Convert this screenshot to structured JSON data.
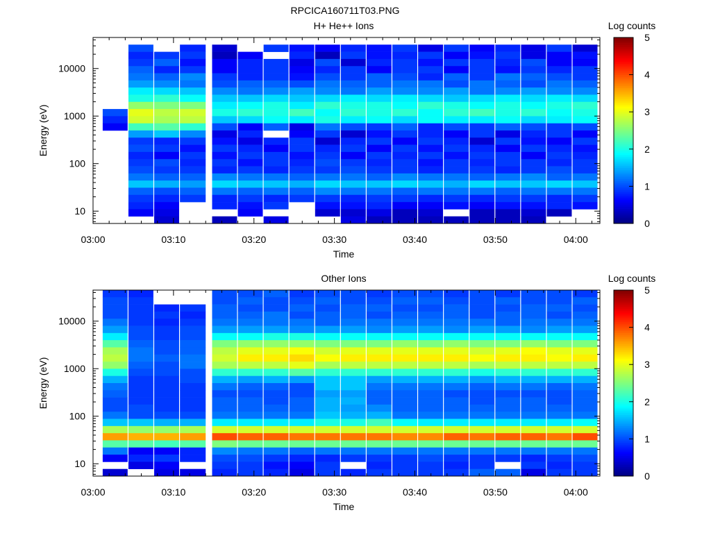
{
  "figure_title": "RPCICA160711T03.PNG",
  "colors": {
    "background": "#ffffff",
    "axis": "#000000",
    "empty_bin": "#ffffff",
    "colormap": [
      "#00007f",
      "#0000ff",
      "#007fff",
      "#00ffff",
      "#7fff7f",
      "#ffff00",
      "#ff7f00",
      "#ff0000",
      "#7f0000"
    ]
  },
  "chart_data": [
    {
      "type": "heatmap",
      "title": "H+ He++ Ions",
      "xlabel": "Time",
      "ylabel": "Energy (eV)",
      "x_ticks": [
        "03:00",
        "03:10",
        "03:20",
        "03:30",
        "03:40",
        "03:50",
        "04:00"
      ],
      "y_ticks": [
        "10",
        "100",
        "1000",
        "10000"
      ],
      "y_scale": "log",
      "ylim": [
        5.5,
        45000
      ],
      "xlim_minutes": [
        0,
        63
      ],
      "grid": false,
      "colorbar": {
        "label": "Log counts",
        "ticks": [
          "0",
          "1",
          "2",
          "3",
          "4",
          "5"
        ],
        "range": [
          0,
          5
        ]
      },
      "x_minutes_start": [
        1.2,
        4.4,
        7.6,
        10.8,
        14.8,
        18.0,
        21.2,
        24.4,
        27.6,
        30.8,
        34.0,
        37.2,
        40.4,
        43.6,
        46.8,
        50.0,
        53.2,
        56.4,
        59.6
      ],
      "x_minutes_end": [
        4.3,
        7.5,
        10.7,
        14.0,
        17.9,
        21.1,
        24.3,
        27.5,
        30.7,
        33.9,
        37.1,
        40.3,
        43.5,
        46.7,
        49.9,
        53.1,
        56.3,
        59.5,
        62.7
      ],
      "levels": [
        [
          0,
          0,
          0,
          0,
          0,
          0,
          0,
          0,
          0,
          0,
          0,
          0,
          0,
          0,
          0,
          0,
          0,
          0,
          0
        ],
        [
          0,
          1,
          0,
          0.8,
          0.4,
          0,
          0.9,
          0.7,
          0.6,
          0.8,
          0.7,
          0.9,
          0.5,
          0.9,
          0.6,
          0.8,
          0.5,
          0.9,
          0.4
        ],
        [
          0,
          0.8,
          0.9,
          0.9,
          0.3,
          0.6,
          0,
          0.8,
          0.3,
          0.9,
          0.7,
          0.8,
          0.9,
          0.6,
          0.7,
          0.9,
          0.5,
          0.6,
          0.7
        ],
        [
          0,
          0.9,
          1.1,
          0.7,
          0.6,
          0.8,
          0.9,
          0.5,
          1.0,
          0.4,
          0.8,
          0.9,
          0.7,
          0.9,
          0.9,
          0.8,
          1.0,
          0.6,
          0.6
        ],
        [
          0,
          1.1,
          0.8,
          0.9,
          0.6,
          0.8,
          0.9,
          0.6,
          0.8,
          0.9,
          0.6,
          0.9,
          0.9,
          0.6,
          0.9,
          0.7,
          0.9,
          0.8,
          0.9
        ],
        [
          0,
          1.2,
          1.1,
          1.3,
          0.9,
          0.8,
          0.9,
          0.7,
          1.0,
          0.9,
          1.1,
          1.0,
          0.8,
          1.1,
          0.9,
          1.2,
          1.1,
          1.0,
          0.9
        ],
        [
          0,
          1.4,
          1.3,
          1.2,
          1.0,
          1.1,
          1.1,
          1.0,
          1.2,
          1.1,
          1.1,
          1.2,
          1.2,
          1.0,
          1.2,
          1.1,
          1.0,
          1.2,
          1.1
        ],
        [
          0,
          1.8,
          1.7,
          1.6,
          1.3,
          1.2,
          1.3,
          1.4,
          1.3,
          1.2,
          1.4,
          1.3,
          1.3,
          1.4,
          1.2,
          1.3,
          1.4,
          1.3,
          1.3
        ],
        [
          0,
          2.0,
          2.1,
          1.9,
          1.6,
          1.6,
          1.7,
          1.6,
          1.7,
          1.8,
          1.7,
          1.8,
          1.7,
          1.6,
          1.7,
          1.8,
          1.7,
          1.8,
          1.7
        ],
        [
          0,
          2.6,
          2.5,
          2.5,
          1.8,
          1.9,
          2.0,
          1.8,
          2.1,
          2.0,
          2.0,
          1.9,
          2.1,
          2.0,
          1.9,
          2.0,
          1.9,
          2.0,
          2.1
        ],
        [
          1.0,
          3.0,
          2.8,
          2.9,
          2.0,
          2.1,
          2.0,
          2.2,
          1.9,
          2.1,
          2.0,
          2.1,
          1.9,
          2.1,
          2.2,
          2.0,
          2.1,
          1.9,
          2.0
        ],
        [
          0.8,
          2.9,
          2.7,
          2.8,
          1.6,
          1.7,
          1.9,
          1.8,
          2.0,
          1.8,
          1.9,
          1.7,
          1.9,
          1.8,
          1.8,
          1.9,
          1.7,
          1.8,
          1.9
        ],
        [
          0.6,
          2.2,
          2.3,
          2.1,
          1.0,
          0.6,
          1.1,
          0.5,
          1.2,
          1.0,
          0.9,
          1.1,
          0.8,
          1.0,
          0.9,
          1.1,
          1.0,
          0.9,
          1.0
        ],
        [
          0,
          1.4,
          1.6,
          1.3,
          0.5,
          0.8,
          0,
          0.6,
          0.9,
          0.4,
          0.7,
          0.9,
          0.8,
          0.6,
          0.9,
          0.5,
          0.8,
          0.9,
          0.6
        ],
        [
          0,
          0.9,
          0.8,
          0.9,
          0.7,
          0.5,
          0.8,
          0.9,
          0.4,
          0.8,
          0.9,
          0.6,
          0.9,
          0.8,
          0.4,
          0.9,
          0.7,
          0.6,
          0.9
        ],
        [
          0,
          1.0,
          0.9,
          0.7,
          0.9,
          0.8,
          0.6,
          0.9,
          0.8,
          0.9,
          0.6,
          0.9,
          0.7,
          0.9,
          0.8,
          0.6,
          0.9,
          0.8,
          0.7
        ],
        [
          0,
          0.8,
          0.6,
          0.9,
          0.7,
          0.9,
          0.9,
          0.7,
          0.9,
          0.6,
          0.9,
          0.8,
          0.9,
          0.7,
          0.9,
          0.9,
          0.6,
          0.9,
          0.8
        ],
        [
          0,
          0.9,
          1.0,
          0.8,
          0.9,
          0.7,
          0.9,
          0.8,
          1.0,
          0.9,
          0.8,
          0.9,
          0.7,
          0.9,
          0.8,
          0.9,
          0.9,
          0.8,
          0.9
        ],
        [
          0,
          1.0,
          0.9,
          0.9,
          0.8,
          0.9,
          0.8,
          0.9,
          0.9,
          1.0,
          0.9,
          0.9,
          0.8,
          0.9,
          0.9,
          0.8,
          0.9,
          1.0,
          0.9
        ],
        [
          0,
          1.2,
          1.1,
          1.1,
          1.3,
          1.2,
          1.2,
          1.1,
          1.2,
          1.2,
          1.1,
          1.3,
          1.2,
          1.2,
          1.1,
          1.2,
          1.3,
          1.1,
          1.2
        ],
        [
          0,
          1.6,
          1.5,
          1.4,
          1.7,
          1.6,
          1.6,
          1.5,
          1.7,
          1.6,
          1.6,
          1.7,
          1.6,
          1.5,
          1.7,
          1.6,
          1.6,
          1.7,
          1.6
        ],
        [
          0,
          1.1,
          1.0,
          1.1,
          1.2,
          1.1,
          1.2,
          1.1,
          1.3,
          1.2,
          1.2,
          1.1,
          1.2,
          1.2,
          1.2,
          1.1,
          1.2,
          1.2,
          1.2
        ],
        [
          0,
          0.9,
          0.8,
          0.9,
          0.8,
          0.9,
          0.8,
          0.9,
          0.9,
          0.8,
          0.9,
          0.9,
          0.8,
          0.9,
          0.8,
          0.9,
          0.9,
          0.8,
          0.9
        ],
        [
          0,
          0.8,
          0.6,
          0,
          0.8,
          0.7,
          0.9,
          0,
          0.7,
          0.7,
          0.8,
          0.6,
          0.6,
          0.7,
          0.6,
          0.7,
          0.7,
          0.8,
          0.7
        ],
        [
          0,
          0.6,
          0.5,
          0,
          0,
          0.6,
          0,
          0,
          0.4,
          0.4,
          0.5,
          0.3,
          0.4,
          0,
          0.3,
          0.3,
          0.4,
          0.3,
          0
        ],
        [
          0,
          0,
          0.4,
          0,
          0.3,
          0,
          0.5,
          0,
          0,
          0.5,
          0.3,
          0.3,
          0.3,
          0.3,
          0.3,
          0.3,
          0.3,
          0,
          0
        ]
      ]
    },
    {
      "type": "heatmap",
      "title": "Other Ions",
      "xlabel": "Time",
      "ylabel": "Energy (eV)",
      "x_ticks": [
        "03:00",
        "03:10",
        "03:20",
        "03:30",
        "03:40",
        "03:50",
        "04:00"
      ],
      "y_ticks": [
        "10",
        "100",
        "1000",
        "10000"
      ],
      "y_scale": "log",
      "ylim": [
        5.5,
        45000
      ],
      "xlim_minutes": [
        0,
        63
      ],
      "grid": false,
      "colorbar": {
        "label": "Log counts",
        "ticks": [
          "0",
          "1",
          "2",
          "3",
          "4",
          "5"
        ],
        "range": [
          0,
          5
        ]
      },
      "x_minutes_start": [
        1.2,
        4.4,
        7.6,
        10.8,
        14.8,
        18.0,
        21.2,
        24.4,
        27.6,
        30.8,
        34.0,
        37.2,
        40.4,
        43.6,
        46.8,
        50.0,
        53.2,
        56.4,
        59.6
      ],
      "x_minutes_end": [
        4.3,
        7.5,
        10.7,
        14.0,
        17.9,
        21.1,
        24.3,
        27.5,
        30.7,
        33.9,
        37.1,
        40.3,
        43.5,
        46.7,
        49.9,
        53.1,
        56.3,
        59.5,
        62.7
      ],
      "levels": [
        [
          0.9,
          0.8,
          0,
          0,
          1.0,
          1.0,
          1.1,
          0.9,
          1.0,
          1.0,
          0.9,
          1.0,
          1.0,
          0.9,
          1.0,
          0.9,
          1.0,
          1.0,
          0.9
        ],
        [
          1.0,
          0.9,
          0,
          0,
          1.0,
          1.1,
          1.0,
          1.0,
          1.1,
          1.0,
          1.0,
          1.1,
          1.1,
          1.0,
          1.0,
          1.1,
          1.0,
          1.0,
          1.1
        ],
        [
          1.0,
          0.9,
          0.8,
          0.9,
          1.1,
          1.0,
          1.0,
          1.1,
          1.0,
          1.1,
          1.1,
          1.0,
          1.0,
          1.1,
          1.0,
          1.0,
          1.1,
          1.1,
          1.0
        ],
        [
          1.0,
          0.9,
          0.9,
          0.8,
          1.1,
          1.1,
          1.2,
          1.0,
          1.1,
          1.1,
          1.0,
          1.1,
          1.1,
          1.1,
          1.0,
          1.1,
          1.1,
          1.0,
          1.1
        ],
        [
          1.2,
          0.9,
          0.8,
          0.9,
          1.2,
          1.2,
          1.2,
          1.2,
          1.1,
          1.2,
          1.2,
          1.2,
          1.2,
          1.2,
          1.2,
          1.1,
          1.2,
          1.2,
          1.2
        ],
        [
          1.4,
          1.0,
          0.9,
          1.0,
          1.4,
          1.4,
          1.4,
          1.3,
          1.4,
          1.4,
          1.3,
          1.4,
          1.4,
          1.3,
          1.4,
          1.4,
          1.3,
          1.4,
          1.4
        ],
        [
          1.8,
          1.0,
          0.9,
          1.0,
          1.9,
          1.9,
          2.0,
          2.0,
          1.9,
          1.9,
          1.9,
          1.9,
          1.9,
          1.9,
          1.9,
          1.9,
          1.9,
          1.9,
          1.9
        ],
        [
          2.3,
          1.1,
          1.0,
          1.1,
          2.5,
          2.6,
          2.6,
          2.6,
          2.5,
          2.5,
          2.5,
          2.6,
          2.5,
          2.6,
          2.5,
          2.5,
          2.6,
          2.5,
          2.5
        ],
        [
          2.7,
          1.2,
          1.0,
          1.1,
          2.8,
          3.0,
          3.0,
          3.1,
          2.9,
          3.0,
          3.0,
          3.0,
          3.0,
          3.0,
          2.9,
          3.0,
          3.1,
          3.0,
          3.0
        ],
        [
          2.8,
          1.2,
          1.1,
          1.2,
          2.9,
          3.2,
          3.2,
          3.3,
          3.1,
          3.2,
          3.2,
          3.2,
          3.2,
          3.2,
          3.1,
          3.2,
          3.2,
          3.1,
          3.2
        ],
        [
          2.6,
          1.1,
          1.0,
          1.2,
          2.7,
          2.8,
          2.8,
          3.0,
          2.7,
          2.8,
          2.8,
          2.8,
          2.8,
          2.8,
          2.7,
          2.8,
          2.8,
          2.8,
          2.8
        ],
        [
          2.0,
          1.0,
          1.0,
          1.0,
          2.1,
          2.1,
          2.1,
          2.3,
          2.1,
          2.1,
          2.1,
          2.1,
          2.1,
          2.1,
          2.0,
          2.1,
          2.1,
          2.1,
          2.1
        ],
        [
          1.5,
          0.9,
          0.9,
          1.0,
          1.5,
          1.4,
          1.5,
          1.4,
          1.6,
          1.6,
          1.4,
          1.5,
          1.5,
          1.5,
          1.4,
          1.5,
          1.5,
          1.5,
          1.5
        ],
        [
          1.2,
          0.9,
          0.9,
          0.9,
          1.2,
          1.1,
          1.1,
          1.0,
          1.6,
          1.6,
          1.2,
          1.2,
          1.2,
          1.2,
          1.1,
          1.2,
          1.2,
          1.1,
          1.2
        ],
        [
          1.1,
          0.9,
          0.9,
          0.9,
          1.0,
          1.0,
          1.0,
          1.0,
          1.4,
          1.4,
          1.1,
          1.1,
          1.1,
          1.0,
          1.0,
          1.0,
          1.0,
          1.0,
          1.1
        ],
        [
          1.0,
          0.9,
          0.9,
          0.9,
          1.1,
          1.1,
          1.0,
          1.1,
          1.5,
          1.5,
          1.1,
          1.1,
          1.1,
          1.1,
          1.0,
          1.1,
          1.1,
          1.0,
          1.1
        ],
        [
          1.0,
          1.0,
          0.9,
          0.9,
          1.1,
          1.1,
          1.1,
          1.1,
          1.5,
          1.4,
          1.3,
          1.1,
          1.1,
          1.1,
          1.1,
          1.1,
          1.1,
          1.1,
          1.1
        ],
        [
          1.2,
          1.0,
          1.0,
          1.0,
          1.2,
          1.2,
          1.2,
          1.2,
          1.6,
          1.5,
          1.5,
          1.2,
          1.2,
          1.2,
          1.2,
          1.2,
          1.2,
          1.2,
          1.2
        ],
        [
          1.6,
          1.6,
          1.5,
          1.5,
          1.8,
          1.8,
          1.8,
          1.8,
          2.0,
          2.0,
          2.2,
          1.9,
          1.8,
          1.8,
          1.8,
          1.8,
          1.8,
          1.8,
          1.9
        ],
        [
          2.7,
          2.6,
          2.6,
          2.7,
          2.9,
          2.9,
          2.9,
          2.9,
          2.9,
          2.9,
          2.9,
          2.9,
          2.9,
          2.9,
          2.9,
          2.9,
          2.9,
          2.9,
          2.9
        ],
        [
          3.6,
          3.5,
          3.5,
          3.6,
          4.0,
          3.9,
          3.9,
          3.8,
          3.8,
          3.8,
          3.8,
          3.7,
          3.7,
          3.9,
          3.8,
          3.9,
          3.9,
          3.8,
          4.0
        ],
        [
          2.3,
          2.3,
          2.2,
          2.3,
          2.5,
          2.4,
          2.4,
          2.4,
          2.4,
          2.4,
          2.4,
          2.4,
          2.4,
          2.4,
          2.4,
          2.4,
          2.4,
          2.4,
          2.4
        ],
        [
          1.2,
          0.6,
          0.6,
          0.8,
          1.3,
          1.2,
          1.2,
          1.1,
          1.2,
          1.2,
          1.2,
          1.2,
          1.2,
          1.2,
          1.2,
          1.2,
          1.2,
          1.2,
          1.2
        ],
        [
          0.6,
          0.8,
          0.9,
          0.8,
          1.0,
          1.0,
          0.9,
          0.8,
          0.8,
          0.9,
          0.9,
          0.9,
          1.0,
          0.9,
          0.9,
          0.9,
          0.8,
          0.9,
          1.0
        ],
        [
          0,
          0.5,
          0.6,
          0,
          0.9,
          0.9,
          0.7,
          0.6,
          0.9,
          0,
          0.8,
          0.9,
          0.9,
          0.8,
          0.9,
          0,
          0.9,
          0.8,
          0.9
        ],
        [
          0.4,
          0,
          0.5,
          0.5,
          0.8,
          0.9,
          0.8,
          0.5,
          0.9,
          0.8,
          0.9,
          0.9,
          0.9,
          0.9,
          1.1,
          1.1,
          0.5,
          0.9,
          0.9
        ]
      ]
    }
  ]
}
